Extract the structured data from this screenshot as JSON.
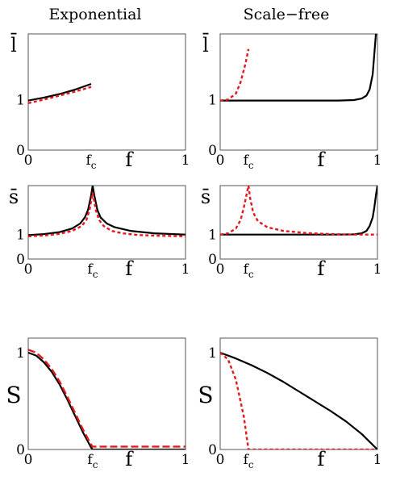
{
  "columns": [
    "Exponential",
    "Scale−free"
  ],
  "chart_data": [
    {
      "type": "line",
      "column": 0,
      "row": 0,
      "ylabel": "l̄",
      "xlabel": "f",
      "xlim": [
        0,
        1
      ],
      "ylim": [
        0,
        2.3
      ],
      "xticks": [
        {
          "v": 0,
          "t": "0"
        },
        {
          "v": 0.4,
          "t": "f",
          "sub": "c"
        },
        {
          "v": 1,
          "t": "1"
        }
      ],
      "yticks": [
        {
          "v": 0,
          "t": "0"
        },
        {
          "v": 1,
          "t": "1"
        }
      ],
      "series": [
        {
          "style": "solid",
          "color": "#000000",
          "x": [
            0,
            0.1,
            0.2,
            0.3,
            0.4
          ],
          "y": [
            0.98,
            1.04,
            1.11,
            1.2,
            1.31
          ]
        },
        {
          "style": "dotted",
          "color": "#e31a1c",
          "x": [
            0,
            0.1,
            0.2,
            0.3,
            0.4
          ],
          "y": [
            0.93,
            1.0,
            1.08,
            1.16,
            1.25
          ]
        }
      ]
    },
    {
      "type": "line",
      "column": 1,
      "row": 0,
      "ylabel": "l̄",
      "xlabel": "f",
      "xlim": [
        0,
        1
      ],
      "ylim": [
        0,
        2.3
      ],
      "xticks": [
        {
          "v": 0,
          "t": "0"
        },
        {
          "v": 0.18,
          "t": "f",
          "sub": "c"
        },
        {
          "v": 1,
          "t": "1"
        }
      ],
      "yticks": [
        {
          "v": 0,
          "t": "0"
        },
        {
          "v": 1,
          "t": "1"
        }
      ],
      "series": [
        {
          "style": "solid",
          "color": "#000000",
          "x": [
            0,
            0.2,
            0.4,
            0.6,
            0.75,
            0.85,
            0.9,
            0.93,
            0.95,
            0.97,
            0.98,
            0.99
          ],
          "y": [
            0.98,
            0.98,
            0.98,
            0.98,
            0.98,
            0.99,
            1.02,
            1.08,
            1.2,
            1.5,
            1.9,
            2.3
          ]
        },
        {
          "style": "dotted",
          "color": "#e31a1c",
          "x": [
            0,
            0.05,
            0.1,
            0.13,
            0.16,
            0.18
          ],
          "y": [
            0.98,
            1.0,
            1.12,
            1.35,
            1.7,
            2.0
          ]
        }
      ]
    },
    {
      "type": "line",
      "column": 0,
      "row": 1,
      "ylabel": "s̄",
      "xlabel": "f",
      "xlim": [
        0,
        1
      ],
      "ylim": [
        0,
        3
      ],
      "xticks": [
        {
          "v": 0,
          "t": "0"
        },
        {
          "v": 0.41,
          "t": "f",
          "sub": "c"
        },
        {
          "v": 1,
          "t": "1"
        }
      ],
      "yticks": [
        {
          "v": 0,
          "t": "0"
        },
        {
          "v": 1,
          "t": "1"
        }
      ],
      "series": [
        {
          "style": "solid",
          "color": "#000000",
          "x": [
            0,
            0.1,
            0.2,
            0.28,
            0.33,
            0.36,
            0.38,
            0.4,
            0.41,
            0.42,
            0.44,
            0.46,
            0.5,
            0.55,
            0.65,
            0.8,
            1.0
          ],
          "y": [
            0.98,
            1.02,
            1.1,
            1.25,
            1.45,
            1.7,
            2.0,
            2.6,
            3.0,
            2.6,
            2.0,
            1.7,
            1.45,
            1.3,
            1.15,
            1.05,
            1.0
          ]
        },
        {
          "style": "dotted",
          "color": "#e31a1c",
          "x": [
            0,
            0.1,
            0.2,
            0.28,
            0.34,
            0.37,
            0.39,
            0.41,
            0.43,
            0.45,
            0.48,
            0.53,
            0.6,
            0.7,
            0.85,
            1.0
          ],
          "y": [
            0.93,
            0.96,
            1.03,
            1.15,
            1.35,
            1.6,
            2.0,
            2.7,
            2.0,
            1.6,
            1.35,
            1.15,
            1.05,
            0.98,
            0.95,
            0.93
          ]
        }
      ]
    },
    {
      "type": "line",
      "column": 1,
      "row": 1,
      "ylabel": "s̄",
      "xlabel": "f",
      "xlim": [
        0,
        1
      ],
      "ylim": [
        0,
        3
      ],
      "xticks": [
        {
          "v": 0,
          "t": "0"
        },
        {
          "v": 0.18,
          "t": "f",
          "sub": "c"
        },
        {
          "v": 1,
          "t": "1"
        }
      ],
      "yticks": [
        {
          "v": 0,
          "t": "0"
        },
        {
          "v": 1,
          "t": "1"
        }
      ],
      "series": [
        {
          "style": "solid",
          "color": "#000000",
          "x": [
            0,
            0.2,
            0.4,
            0.6,
            0.75,
            0.85,
            0.9,
            0.93,
            0.95,
            0.97,
            0.98,
            0.99,
            1.0
          ],
          "y": [
            1.0,
            1.0,
            1.0,
            1.0,
            1.0,
            1.01,
            1.05,
            1.15,
            1.35,
            1.7,
            2.1,
            2.6,
            3.0
          ]
        },
        {
          "style": "dotted",
          "color": "#e31a1c",
          "x": [
            0,
            0.05,
            0.1,
            0.13,
            0.15,
            0.17,
            0.18,
            0.19,
            0.21,
            0.24,
            0.3,
            0.4,
            0.55,
            0.7,
            0.85,
            1.0
          ],
          "y": [
            1.0,
            1.05,
            1.25,
            1.6,
            2.1,
            2.7,
            3.0,
            2.5,
            1.9,
            1.55,
            1.3,
            1.15,
            1.06,
            1.02,
            1.0,
            1.0
          ]
        }
      ]
    },
    {
      "type": "line",
      "column": 0,
      "row": 2,
      "ylabel": "S",
      "xlabel": "f",
      "xlim": [
        0,
        1
      ],
      "ylim": [
        0,
        1.15
      ],
      "xticks": [
        {
          "v": 0,
          "t": "0"
        },
        {
          "v": 0.41,
          "t": "f",
          "sub": "c"
        },
        {
          "v": 1,
          "t": "1"
        }
      ],
      "yticks": [
        {
          "v": 0,
          "t": "0"
        },
        {
          "v": 1,
          "t": "1"
        }
      ],
      "series": [
        {
          "style": "solid",
          "color": "#000000",
          "x": [
            0,
            0.05,
            0.1,
            0.15,
            0.2,
            0.25,
            0.3,
            0.35,
            0.4,
            0.41,
            1.0
          ],
          "y": [
            1.0,
            0.97,
            0.9,
            0.8,
            0.67,
            0.51,
            0.34,
            0.17,
            0.02,
            0.0,
            0.0
          ]
        },
        {
          "style": "dashed",
          "color": "#e31a1c",
          "x": [
            0,
            0.05,
            0.1,
            0.15,
            0.2,
            0.25,
            0.3,
            0.35,
            0.4,
            0.41,
            1.0
          ],
          "y": [
            1.03,
            1.0,
            0.93,
            0.83,
            0.7,
            0.54,
            0.37,
            0.2,
            0.05,
            0.03,
            0.03
          ]
        }
      ]
    },
    {
      "type": "line",
      "column": 1,
      "row": 2,
      "ylabel": "S",
      "xlabel": "f",
      "xlim": [
        0,
        1
      ],
      "ylim": [
        0,
        1.15
      ],
      "xticks": [
        {
          "v": 0,
          "t": "0"
        },
        {
          "v": 0.18,
          "t": "f",
          "sub": "c"
        },
        {
          "v": 1,
          "t": "1"
        }
      ],
      "yticks": [
        {
          "v": 0,
          "t": "0"
        },
        {
          "v": 1,
          "t": "1"
        }
      ],
      "series": [
        {
          "style": "solid",
          "color": "#000000",
          "x": [
            0,
            0.1,
            0.2,
            0.3,
            0.4,
            0.5,
            0.6,
            0.7,
            0.8,
            0.9,
            1.0
          ],
          "y": [
            1.0,
            0.94,
            0.87,
            0.79,
            0.7,
            0.6,
            0.5,
            0.4,
            0.29,
            0.16,
            0.0
          ]
        },
        {
          "style": "dotted",
          "color": "#e31a1c",
          "x": [
            0,
            0.05,
            0.1,
            0.15,
            0.18,
            1.0
          ],
          "y": [
            1.0,
            0.93,
            0.72,
            0.34,
            0.0,
            0.0
          ]
        }
      ]
    }
  ]
}
